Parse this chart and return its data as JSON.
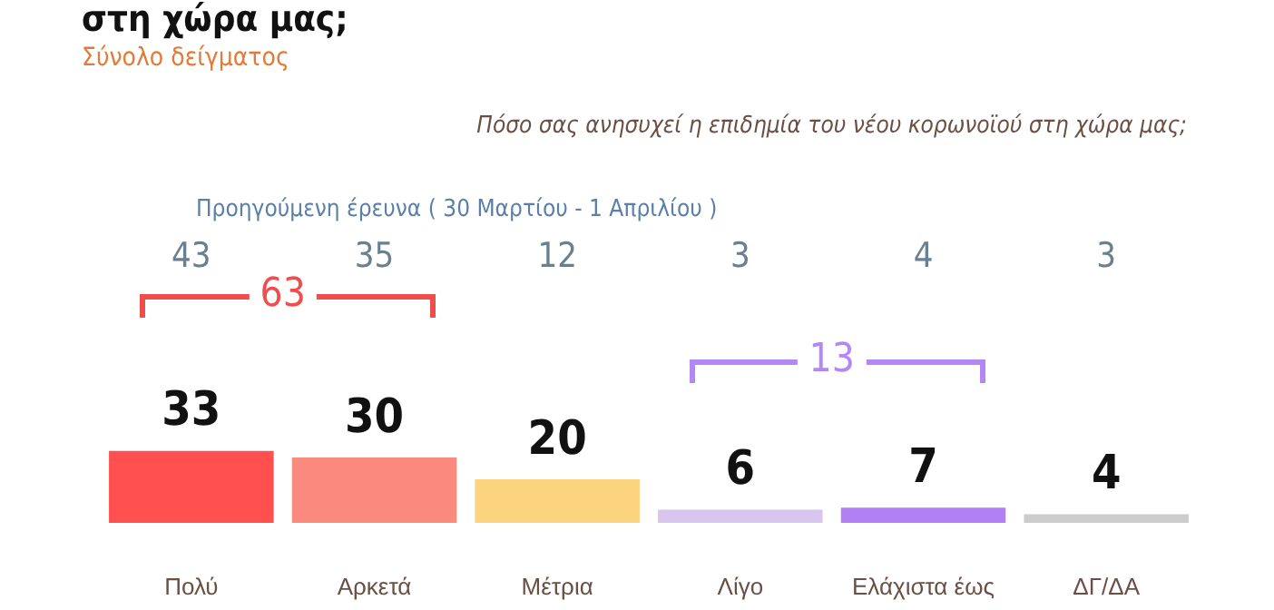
{
  "chart_data": {
    "type": "bar",
    "title": "στη χώρα μας;",
    "subtitle": "Σύνολο δείγματος",
    "categories": [
      "Πολύ",
      "Αρκετά",
      "Μέτρια",
      "Λίγο",
      "Ελάχιστα έως",
      "ΔΓ/ΔΑ"
    ],
    "values": [
      33,
      30,
      20,
      6,
      7,
      4
    ],
    "colors": [
      "#ff4f4f",
      "#fb8a7e",
      "#fcd37f",
      "#d8c6ee",
      "#b37ff4",
      "#cccccc"
    ],
    "data_labels": true,
    "annotations": [
      "Πόσο σας ανησυχεί η επιδημία του νέου κορωνοϊού στη χώρα μας;",
      "Προηγούμενη έρευνα   ( 30 Μαρτίου - 1 Απριλίου )",
      "43",
      "35",
      "12",
      "3",
      "4",
      "3",
      "63",
      "13"
    ]
  }
}
